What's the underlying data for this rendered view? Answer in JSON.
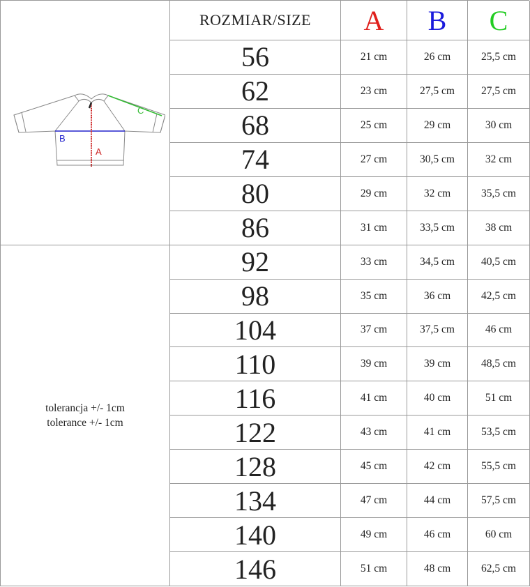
{
  "header": {
    "size_label": "ROZMIAR/SIZE",
    "columns": [
      "A",
      "B",
      "C"
    ]
  },
  "colors": {
    "A": "#e0201c",
    "B": "#1a1adc",
    "C": "#22cc22"
  },
  "diagram": {
    "icon": "jacket-measurement-diagram",
    "labels": {
      "A": "A",
      "B": "B",
      "C": "C"
    }
  },
  "tolerance": [
    "tolerancja +/- 1cm",
    "tolerance +/- 1cm"
  ],
  "rows": [
    {
      "size": "56",
      "A": "21 cm",
      "B": "26 cm",
      "C": "25,5 cm"
    },
    {
      "size": "62",
      "A": "23 cm",
      "B": "27,5 cm",
      "C": "27,5 cm"
    },
    {
      "size": "68",
      "A": "25 cm",
      "B": "29 cm",
      "C": "30 cm"
    },
    {
      "size": "74",
      "A": "27 cm",
      "B": "30,5 cm",
      "C": "32 cm"
    },
    {
      "size": "80",
      "A": "29 cm",
      "B": "32 cm",
      "C": "35,5 cm"
    },
    {
      "size": "86",
      "A": "31 cm",
      "B": "33,5 cm",
      "C": "38 cm"
    },
    {
      "size": "92",
      "A": "33 cm",
      "B": "34,5 cm",
      "C": "40,5 cm"
    },
    {
      "size": "98",
      "A": "35 cm",
      "B": "36 cm",
      "C": "42,5 cm"
    },
    {
      "size": "104",
      "A": "37 cm",
      "B": "37,5 cm",
      "C": "46 cm"
    },
    {
      "size": "110",
      "A": "39 cm",
      "B": "39 cm",
      "C": "48,5 cm"
    },
    {
      "size": "116",
      "A": "41 cm",
      "B": "40 cm",
      "C": "51 cm"
    },
    {
      "size": "122",
      "A": "43 cm",
      "B": "41 cm",
      "C": "53,5 cm"
    },
    {
      "size": "128",
      "A": "45 cm",
      "B": "42 cm",
      "C": "55,5 cm"
    },
    {
      "size": "134",
      "A": "47 cm",
      "B": "44 cm",
      "C": "57,5 cm"
    },
    {
      "size": "140",
      "A": "49 cm",
      "B": "46 cm",
      "C": "60 cm"
    },
    {
      "size": "146",
      "A": "51 cm",
      "B": "48 cm",
      "C": "62,5 cm"
    }
  ]
}
